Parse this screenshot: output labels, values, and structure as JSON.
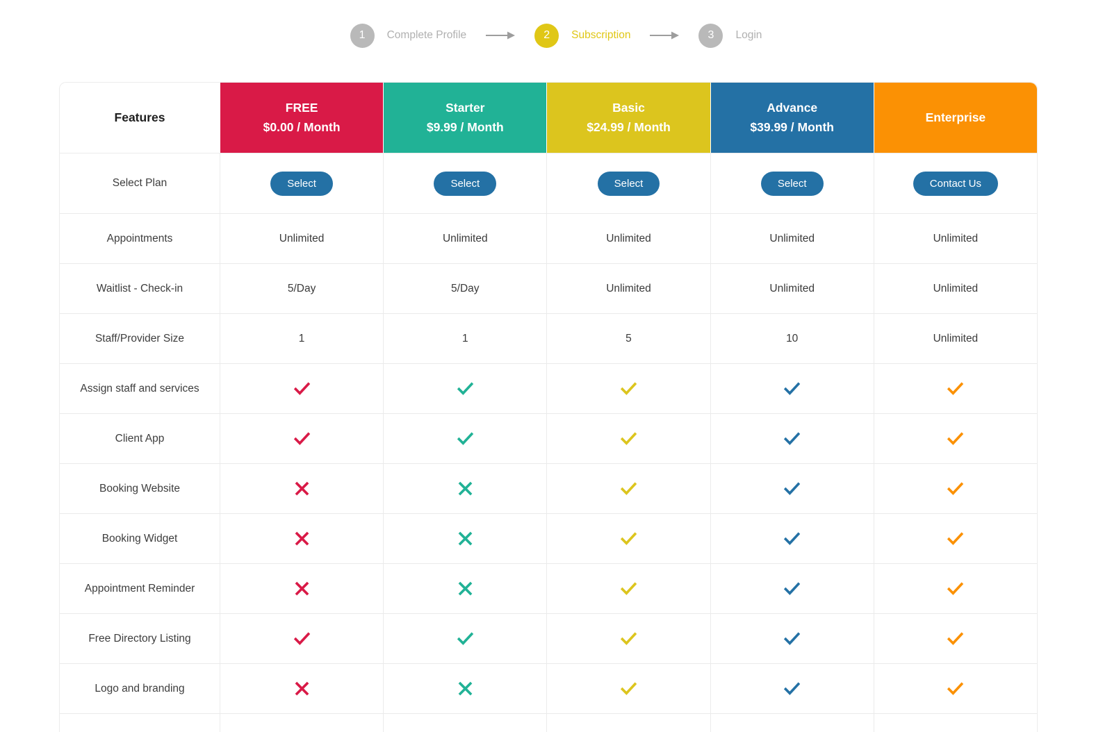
{
  "stepper": {
    "steps": [
      {
        "number": "1",
        "label": "Complete Profile",
        "active": false
      },
      {
        "number": "2",
        "label": "Subscription",
        "active": true
      },
      {
        "number": "3",
        "label": "Login",
        "active": false
      }
    ]
  },
  "colors": {
    "stepper_active": "#e0c716",
    "stepper_inactive": "#b9b9b9",
    "stepper_label_inactive": "#b0b0b0",
    "stepper_arrow": "#9d9d9d",
    "button_blue": "#2471a5",
    "free": "#d91a47",
    "starter": "#21b296",
    "basic": "#dcc51e",
    "advance": "#2471a5",
    "enterprise": "#fb9104"
  },
  "icons": {
    "check": "check-icon",
    "cross": "cross-icon"
  },
  "table": {
    "features_header": "Features",
    "plans": [
      {
        "name": "FREE",
        "price": "$0.00 / Month",
        "color": "#d91a47"
      },
      {
        "name": "Starter",
        "price": "$9.99 / Month",
        "color": "#21b296"
      },
      {
        "name": "Basic",
        "price": "$24.99 / Month",
        "color": "#dcc51e"
      },
      {
        "name": "Advance",
        "price": "$39.99 / Month",
        "color": "#2471a5"
      },
      {
        "name": "Enterprise",
        "price": "",
        "color": "#fb9104"
      }
    ],
    "select_row": {
      "feature": "Select Plan",
      "buttons": [
        "Select",
        "Select",
        "Select",
        "Select",
        "Contact Us"
      ]
    },
    "rows": [
      {
        "feature": "Appointments",
        "values": [
          "Unlimited",
          "Unlimited",
          "Unlimited",
          "Unlimited",
          "Unlimited"
        ]
      },
      {
        "feature": "Waitlist - Check-in",
        "values": [
          "5/Day",
          "5/Day",
          "Unlimited",
          "Unlimited",
          "Unlimited"
        ]
      },
      {
        "feature": "Staff/Provider Size",
        "values": [
          "1",
          "1",
          "5",
          "10",
          "Unlimited"
        ]
      },
      {
        "feature": "Assign staff and services",
        "values": [
          "check",
          "check",
          "check",
          "check",
          "check"
        ]
      },
      {
        "feature": "Client App",
        "values": [
          "check",
          "check",
          "check",
          "check",
          "check"
        ]
      },
      {
        "feature": "Booking Website",
        "values": [
          "cross",
          "cross",
          "check",
          "check",
          "check"
        ]
      },
      {
        "feature": "Booking Widget",
        "values": [
          "cross",
          "cross",
          "check",
          "check",
          "check"
        ]
      },
      {
        "feature": "Appointment Reminder",
        "values": [
          "cross",
          "cross",
          "check",
          "check",
          "check"
        ]
      },
      {
        "feature": "Free Directory Listing",
        "values": [
          "check",
          "check",
          "check",
          "check",
          "check"
        ]
      },
      {
        "feature": "Logo and branding",
        "values": [
          "cross",
          "cross",
          "check",
          "check",
          "check"
        ]
      }
    ]
  }
}
